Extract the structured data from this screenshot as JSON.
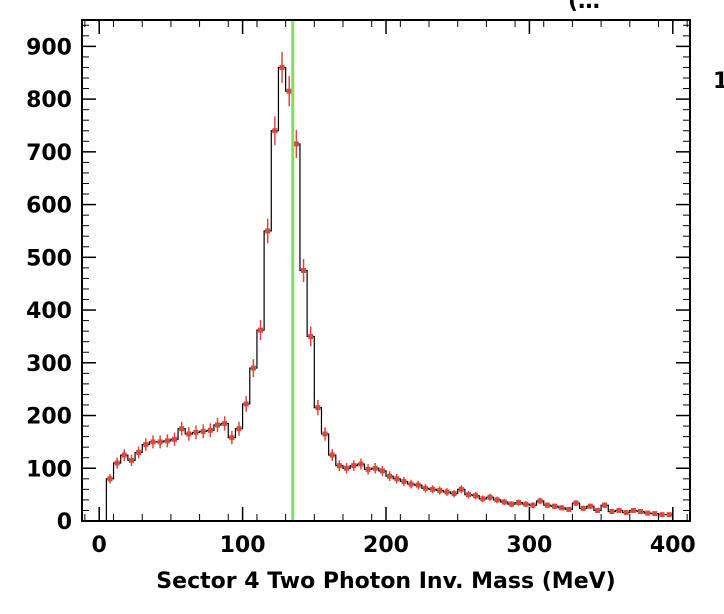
{
  "chart_data": {
    "type": "histogram",
    "title": "",
    "title_fragment_top_right": "(…",
    "side_fragment_right": "1",
    "xlabel": "Sector 4 Two Photon Inv. Mass (MeV)",
    "ylabel": "",
    "xlim": [
      -12,
      412
    ],
    "ylim": [
      0,
      950
    ],
    "xticks": [
      0,
      100,
      200,
      300,
      400
    ],
    "yticks": [
      0,
      100,
      200,
      300,
      400,
      500,
      600,
      700,
      800,
      900
    ],
    "grid": false,
    "legend": "none",
    "bin_width": 5,
    "bin_start": 5,
    "counts": [
      80,
      110,
      125,
      115,
      130,
      145,
      150,
      150,
      152,
      155,
      175,
      165,
      168,
      170,
      172,
      182,
      185,
      158,
      175,
      222,
      290,
      362,
      550,
      740,
      860,
      815,
      715,
      475,
      350,
      215,
      165,
      125,
      105,
      100,
      105,
      108,
      98,
      100,
      95,
      85,
      80,
      75,
      70,
      68,
      62,
      60,
      58,
      55,
      52,
      60,
      50,
      48,
      42,
      45,
      40,
      36,
      32,
      35,
      32,
      30,
      38,
      30,
      28,
      25,
      22,
      34,
      24,
      28,
      20,
      30,
      18,
      20,
      16,
      20,
      18,
      15,
      14,
      12,
      12
    ],
    "reference_line": {
      "x": 135,
      "color": "#88dd55"
    },
    "colors": {
      "histogram": "#000000",
      "points": "#d94a3c",
      "reference_line": "#88dd55"
    }
  }
}
